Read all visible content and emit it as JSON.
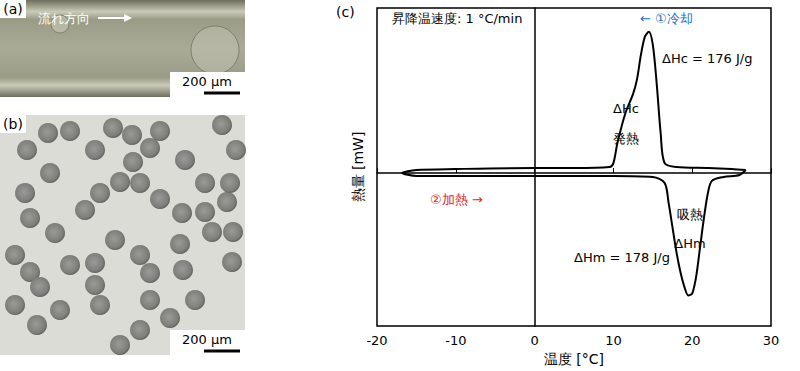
{
  "panels": [
    {
      "label": "(a)",
      "annotation": "流れ方向",
      "scale_bar": "200 μm"
    },
    {
      "label": "(b)",
      "scale_bar": "200 μm"
    }
  ],
  "chart_data": {
    "type": "line",
    "panel": "(c)",
    "x_label": "温度 [°C]",
    "y_label": "熱量 [mW]",
    "color": "#000000",
    "x": [
      26.8,
      25,
      22,
      18,
      16.5,
      16,
      15.5,
      15,
      14.5,
      14,
      13.5,
      13,
      12.5,
      11.5,
      10.5,
      10,
      9.5,
      5,
      0,
      -10,
      -15,
      -16.8,
      -15,
      -10,
      0,
      10,
      15,
      16.5,
      17,
      17.5,
      18,
      18.5,
      19,
      19.5,
      20,
      20.5,
      21,
      21.5,
      22,
      22.5,
      24,
      26,
      26.8
    ],
    "values": [
      0.03,
      0.04,
      0.05,
      0.06,
      0.1,
      0.4,
      0.9,
      1.3,
      1.43,
      1.38,
      1.2,
      0.95,
      0.8,
      0.6,
      0.3,
      0.1,
      0.06,
      0.05,
      0.05,
      0.04,
      0.03,
      0.0,
      -0.03,
      -0.03,
      -0.03,
      -0.03,
      -0.04,
      -0.1,
      -0.3,
      -0.55,
      -0.8,
      -1.0,
      -1.15,
      -1.24,
      -1.22,
      -1.05,
      -0.75,
      -0.45,
      -0.2,
      -0.08,
      -0.04,
      -0.02,
      0.03
    ],
    "xlim": [
      -20,
      30
    ],
    "xticks": [
      -20,
      -10,
      0,
      10,
      20,
      30
    ],
    "ylim": [
      -1.55,
      1.67
    ],
    "tick_labels": "x",
    "grid": false,
    "annotations": [
      {
        "text": "昇降温速度: 1 °C/min",
        "color": "#000000"
      },
      {
        "text": "← ①冷却",
        "color": "#1a6fc9"
      },
      {
        "text": "ΔHc = 176 J/g",
        "color": "#000000"
      },
      {
        "text": "ΔHc",
        "color": "#000000"
      },
      {
        "text": "発熱",
        "color": "#000000"
      },
      {
        "text": "吸熱",
        "color": "#000000"
      },
      {
        "text": "ΔHm",
        "color": "#000000"
      },
      {
        "text": "ΔHm = 178 J/g",
        "color": "#000000"
      },
      {
        "text": "②加熱 →",
        "color": "#e0262a"
      }
    ]
  }
}
